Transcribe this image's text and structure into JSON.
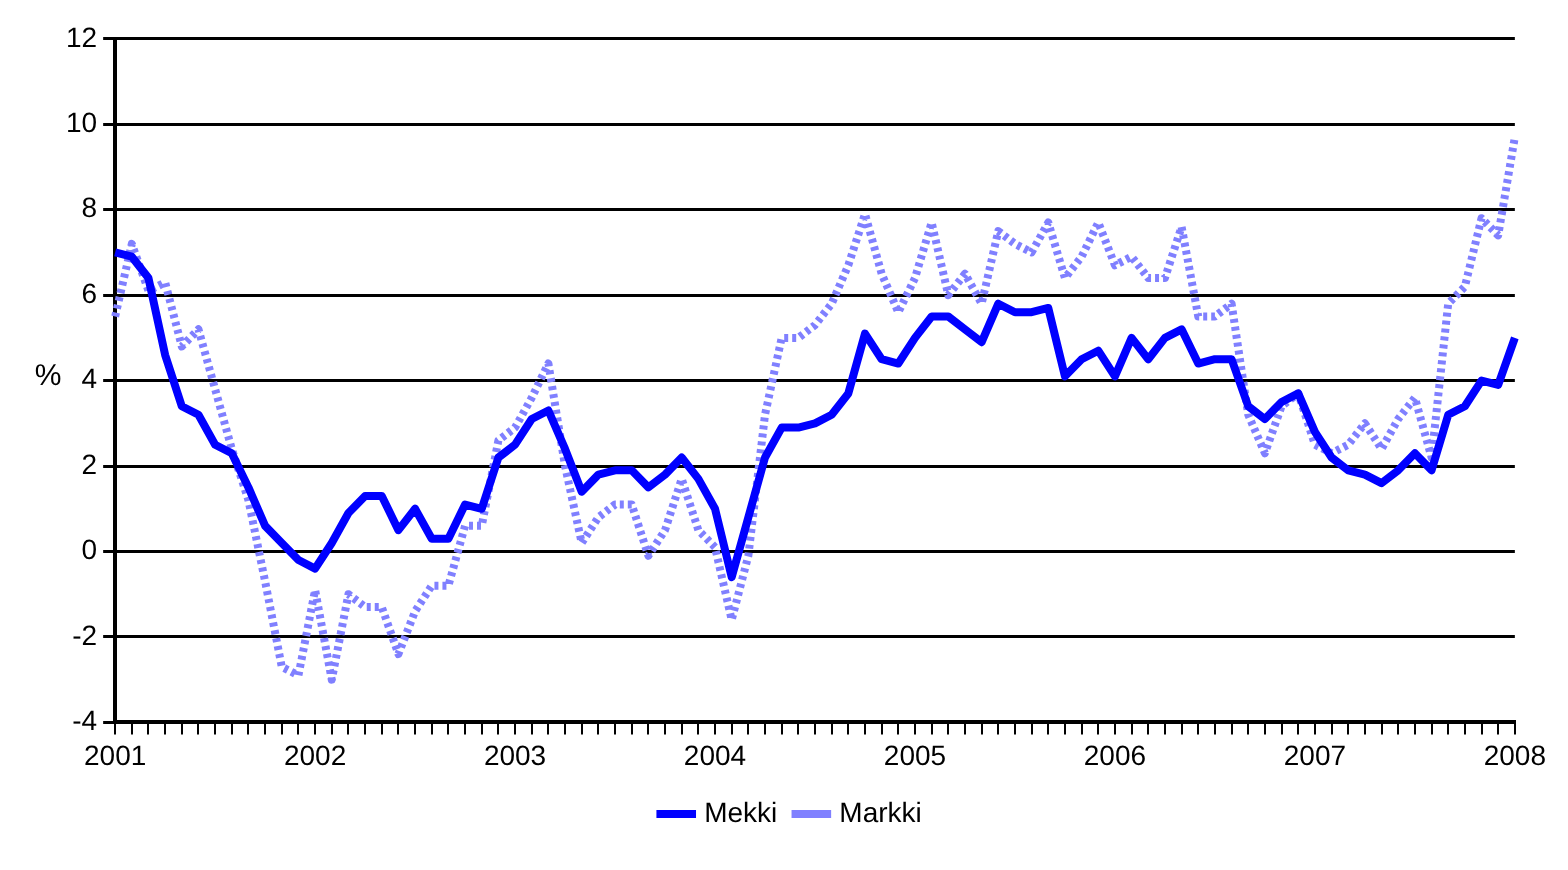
{
  "chart_data": {
    "type": "line",
    "ylabel": "%",
    "categories": [
      "2001",
      null,
      null,
      null,
      null,
      null,
      null,
      null,
      null,
      null,
      null,
      null,
      "2002",
      null,
      null,
      null,
      null,
      null,
      null,
      null,
      null,
      null,
      null,
      null,
      "2003",
      null,
      null,
      null,
      null,
      null,
      null,
      null,
      null,
      null,
      null,
      null,
      "2004",
      null,
      null,
      null,
      null,
      null,
      null,
      null,
      null,
      null,
      null,
      null,
      "2005",
      null,
      null,
      null,
      null,
      null,
      null,
      null,
      null,
      null,
      null,
      null,
      "2006",
      null,
      null,
      null,
      null,
      null,
      null,
      null,
      null,
      null,
      null,
      null,
      "2007",
      null,
      null,
      null,
      null,
      null,
      null,
      null,
      null,
      null,
      null,
      null,
      "2008"
    ],
    "series": [
      {
        "name": "Mekki",
        "color": "#0000ff",
        "line_style": "solid",
        "values": [
          7.0,
          6.9,
          6.4,
          4.6,
          3.4,
          3.2,
          2.5,
          2.3,
          1.5,
          0.6,
          0.2,
          -0.2,
          -0.4,
          0.2,
          0.9,
          1.3,
          1.3,
          0.5,
          1.0,
          0.3,
          0.3,
          1.1,
          1.0,
          2.2,
          2.5,
          3.1,
          3.3,
          2.4,
          1.4,
          1.8,
          1.9,
          1.9,
          1.5,
          1.8,
          2.2,
          1.7,
          1.0,
          -0.6,
          0.8,
          2.2,
          2.9,
          2.9,
          3.0,
          3.2,
          3.7,
          5.1,
          4.5,
          4.4,
          5.0,
          5.5,
          5.5,
          5.2,
          4.9,
          5.8,
          5.6,
          5.6,
          5.7,
          4.1,
          4.5,
          4.7,
          4.1,
          5.0,
          4.5,
          5.0,
          5.2,
          4.4,
          4.5,
          4.5,
          3.4,
          3.1,
          3.5,
          3.7,
          2.8,
          2.2,
          1.9,
          1.8,
          1.6,
          1.9,
          2.3,
          1.9,
          3.2,
          3.4,
          4.0,
          3.9,
          5.0
        ]
      },
      {
        "name": "Markki",
        "color": "#8080ff",
        "line_style": "dotted",
        "values": [
          5.5,
          7.2,
          6.1,
          6.3,
          4.8,
          5.2,
          3.8,
          2.4,
          1.2,
          -0.7,
          -2.7,
          -2.9,
          -0.9,
          -3.0,
          -1.0,
          -1.3,
          -1.3,
          -2.4,
          -1.4,
          -0.8,
          -0.8,
          0.6,
          0.6,
          2.6,
          2.9,
          3.6,
          4.4,
          2.0,
          0.2,
          0.8,
          1.1,
          1.1,
          -0.1,
          0.5,
          1.7,
          0.5,
          0.1,
          -1.6,
          -0.1,
          3.2,
          5.0,
          5.0,
          5.3,
          5.8,
          6.7,
          7.9,
          6.5,
          5.6,
          6.4,
          7.7,
          6.0,
          6.5,
          5.8,
          7.5,
          7.2,
          7.0,
          7.7,
          6.4,
          6.9,
          7.7,
          6.7,
          6.9,
          6.4,
          6.4,
          7.6,
          5.5,
          5.5,
          5.8,
          3.2,
          2.3,
          3.4,
          3.7,
          2.5,
          2.3,
          2.5,
          3.0,
          2.4,
          3.1,
          3.6,
          2.2,
          5.8,
          6.2,
          7.8,
          7.4,
          9.7
        ]
      }
    ],
    "ylim": [
      -4,
      12
    ],
    "yticks": [
      -4,
      -2,
      0,
      2,
      4,
      6,
      8,
      10,
      12
    ],
    "grid": "y",
    "legend": "bottom",
    "marker": "none"
  }
}
